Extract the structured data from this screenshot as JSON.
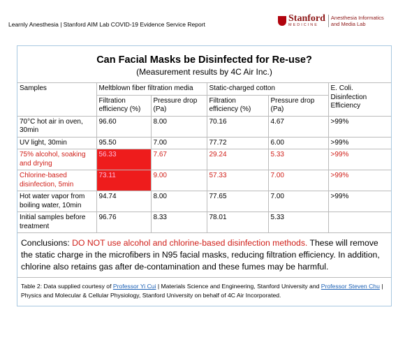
{
  "header": {
    "report": "Learnly  Anesthesia | Stanford AIM Lab COVID-19 Evidence Service Report",
    "logo": {
      "name": "Stanford",
      "sub": "MEDICINE",
      "lab": [
        "Anesthesia Informatics",
        "and Media Lab"
      ]
    }
  },
  "title": "Can Facial Masks be Disinfected for Re-use?",
  "subtitle": "(Measurement results by 4C Air Inc.)",
  "table": {
    "head": {
      "samples": "Samples",
      "groups": [
        "Meltblown fiber filtration media",
        "Static-charged cotton"
      ],
      "ecoli": "E. Coli. Disinfection Efficiency",
      "sub": [
        "Filtration efficiency (%)",
        "Pressure drop (Pa)",
        "Filtration efficiency (%)",
        "Pressure drop (Pa)"
      ]
    },
    "rows": [
      [
        "70°C hot air in oven, 30min",
        "96.60",
        "8.00",
        "70.16",
        "4.67",
        ">99%"
      ],
      [
        "UV light, 30min",
        "95.50",
        "7.00",
        "77.72",
        "6.00",
        ">99%"
      ],
      [
        "75% alcohol, soaking and drying",
        "56.33",
        "7.67",
        "29.24",
        "5.33",
        ">99%"
      ],
      [
        "Chlorine-based disinfection, 5min",
        "73.11",
        "9.00",
        "57.33",
        "7.00",
        ">99%"
      ],
      [
        "Hot water vapor from boiling water, 10min",
        "94.74",
        "8.00",
        "77.65",
        "7.00",
        ">99%"
      ],
      [
        "Initial samples before treatment",
        "96.76",
        "8.33",
        "78.01",
        "5.33",
        ""
      ]
    ]
  },
  "conclusions": {
    "label": "Conclusions:",
    "warning": "DO NOT use alcohol and chlorine-based disinfection methods.",
    "text": "These will remove the static charge in the microfibers in N95 facial masks, reducing filtration efficiency. In addition, chlorine also retains gas after de-contamination and these fumes may be harmful."
  },
  "caption": {
    "lead": "Table 2:  Data supplied courtesy of",
    "link1": "Professor Yi Cui",
    "mid": "| Materials Science and Engineering, Stanford University and",
    "link2": "Professor Steven Chu",
    "tail": "| Physics and Molecular & Cellular Physiology, Stanford University on behalf of 4C Air Incorporated."
  }
}
